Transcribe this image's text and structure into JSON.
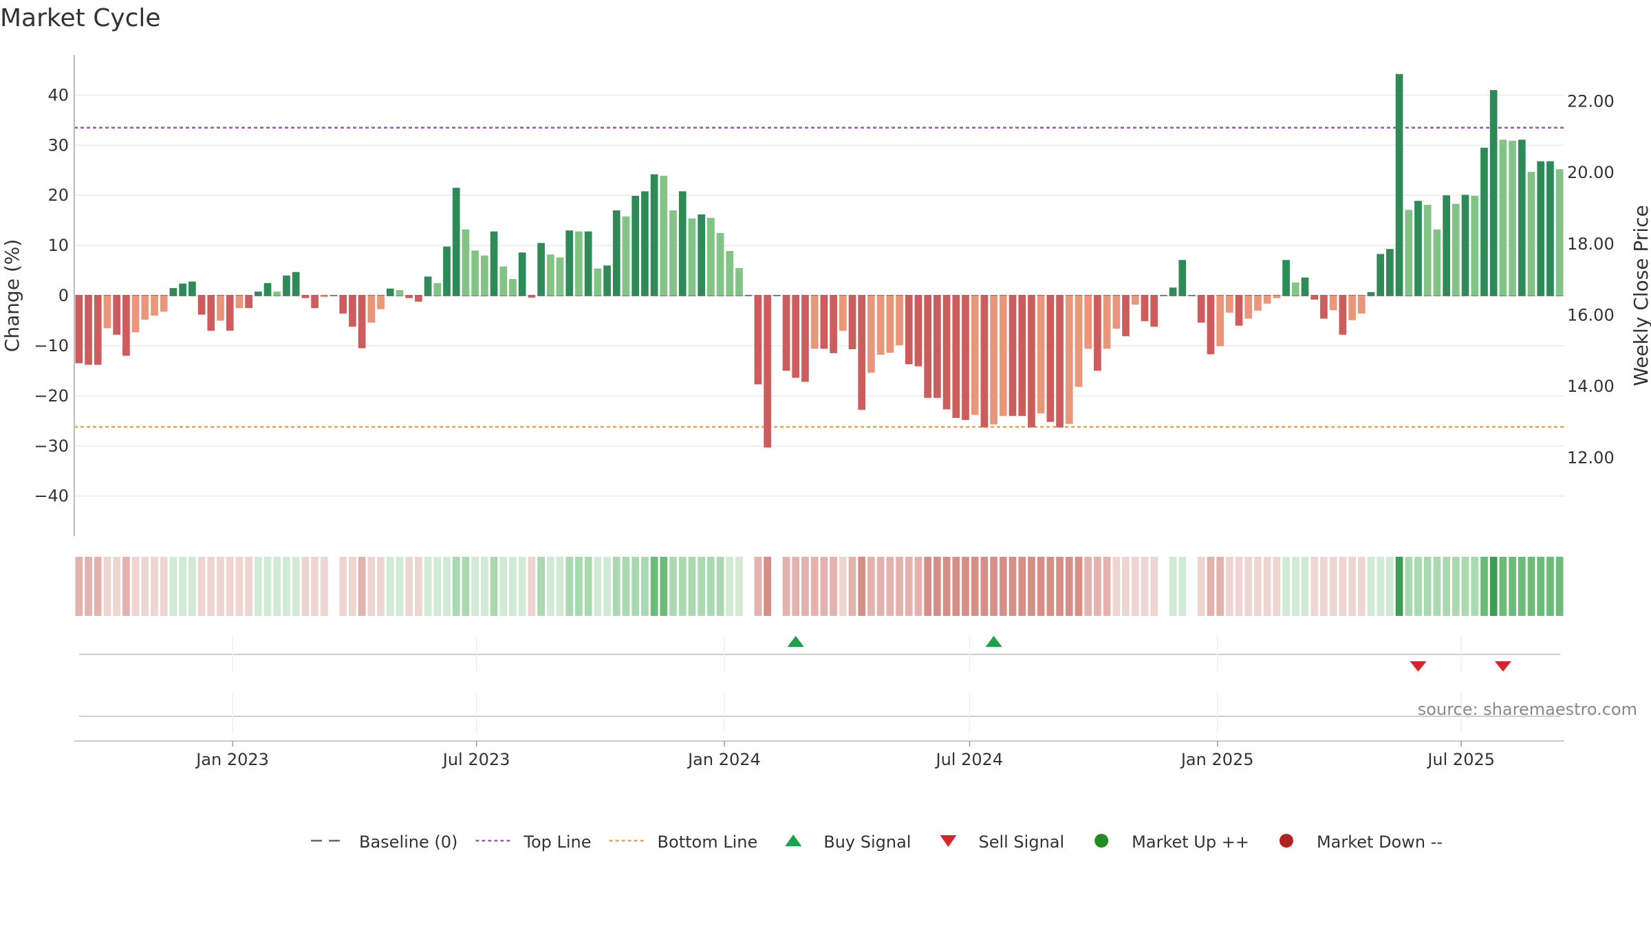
{
  "chart_data": {
    "type": "bar",
    "title": "Market Cycle",
    "ylabel": "Change (%)",
    "y2label": "Weekly Close Price",
    "ylim": [
      -48,
      48
    ],
    "yticks": [
      40,
      30,
      20,
      10,
      0,
      -10,
      -20,
      -30,
      -40
    ],
    "ytick_labels": [
      "40",
      "30",
      "20",
      "10",
      "0",
      "−10",
      "−20",
      "−30",
      "−40"
    ],
    "y2lim": [
      9.8,
      23.3
    ],
    "y2ticks": [
      22,
      20,
      18,
      16,
      14,
      12
    ],
    "y2tick_labels": [
      "22.00",
      "20.00",
      "18.00",
      "16.00",
      "14.00",
      "12.00"
    ],
    "top_line": 33.5,
    "bottom_line": -26.2,
    "x_start": "2022-09-09",
    "week_days": 7,
    "xticks": [
      {
        "date": "2023-01-01",
        "label": "Jan 2023"
      },
      {
        "date": "2023-07-01",
        "label": "Jul 2023"
      },
      {
        "date": "2024-01-01",
        "label": "Jan 2024"
      },
      {
        "date": "2024-07-01",
        "label": "Jul 2024"
      },
      {
        "date": "2025-01-01",
        "label": "Jan 2025"
      },
      {
        "date": "2025-07-01",
        "label": "Jul 2025"
      }
    ],
    "values": [
      -13.5,
      -13.8,
      -13.8,
      -6.5,
      -7.8,
      -12,
      -7.3,
      -4.8,
      -4,
      -3.2,
      1.5,
      2.4,
      2.8,
      -3.8,
      -7,
      -5,
      -7,
      -2.5,
      -2.5,
      0.8,
      2.5,
      0.8,
      4,
      4.7,
      -0.5,
      -2.5,
      -0.3,
      0,
      -3.6,
      -6.2,
      -10.5,
      -5.4,
      -2.7,
      1.4,
      1.1,
      -0.5,
      -1.2,
      3.8,
      2.5,
      9.8,
      21.5,
      13.2,
      9,
      8,
      12.8,
      5.8,
      3.3,
      8.6,
      -0.4,
      10.5,
      8.2,
      7.6,
      13,
      12.8,
      12.8,
      5.4,
      6,
      17,
      15.8,
      19.9,
      20.8,
      24.2,
      23.9,
      17,
      20.8,
      15.4,
      16.2,
      15.5,
      12.5,
      8.9,
      5.5,
      0,
      -17.7,
      -30.3,
      0,
      -15,
      -16.4,
      -17.2,
      -10.6,
      -10.6,
      -11.5,
      -7,
      -10.7,
      -22.8,
      -15.4,
      -11.8,
      -11.4,
      -9.9,
      -13.7,
      -14.1,
      -20.4,
      -20.4,
      -22.7,
      -24.4,
      -24.8,
      -23.8,
      -26.3,
      -25.7,
      -24,
      -24,
      -24,
      -26.3,
      -23.5,
      -25.2,
      -26.3,
      -25.6,
      -18.2,
      -10.6,
      -15,
      -10.6,
      -6.6,
      -8.1,
      -1.8,
      -5.1,
      -6.2,
      0,
      1.6,
      7.1,
      0,
      -5.4,
      -11.7,
      -10.1,
      -3.4,
      -6,
      -4.6,
      -3,
      -1.6,
      -0.5,
      7.1,
      2.6,
      3.6,
      -0.8,
      -4.6,
      -2.9,
      -7.8,
      -4.9,
      -3.6,
      0.7,
      8.3,
      9.3,
      44.2,
      17.1,
      18.9,
      18.1,
      13.2,
      20,
      18.3,
      20.1,
      19.9,
      29.5,
      41,
      31.1,
      30.9,
      31.1,
      24.7,
      26.8,
      26.8,
      25.2
    ],
    "strong_up_color": "#2e8b57",
    "mild_up_color": "#82c485",
    "strong_down_color": "#cd5c5c",
    "mild_down_color": "#e9967a",
    "heat_colors": {
      "up_light": "#d0ead3",
      "up_mid": "#a9d9ae",
      "up_strong": "#6cbc78",
      "up_peak": "#3b9e52",
      "down_light": "#eed5d2",
      "down_mid": "#e3b2ac",
      "down_strong": "#d68f87"
    },
    "top_line_color": "#9b59b6",
    "bottom_line_color": "#f39c52",
    "buy_signals": [
      "2024-02-23",
      "2024-07-19"
    ],
    "sell_signals": [
      "2025-05-30",
      "2025-08-01"
    ],
    "buy_color": "#1aa34a",
    "sell_color": "#d62728",
    "legend_position": "bottom-center",
    "legend": [
      {
        "label": "Baseline (0)",
        "kind": "dash",
        "color": "#666666"
      },
      {
        "label": "Top Line",
        "kind": "dot",
        "color": "#9b59b6"
      },
      {
        "label": "Bottom Line",
        "kind": "dot",
        "color": "#f39c52"
      },
      {
        "label": "Buy Signal",
        "kind": "tri-up",
        "color": "#1aa34a"
      },
      {
        "label": "Sell Signal",
        "kind": "tri-down",
        "color": "#d62728"
      },
      {
        "label": "Market Up ++",
        "kind": "circle",
        "color": "#228b22"
      },
      {
        "label": "Market Down --",
        "kind": "circle",
        "color": "#b22222"
      }
    ],
    "source": "source: sharemaestro.com"
  }
}
